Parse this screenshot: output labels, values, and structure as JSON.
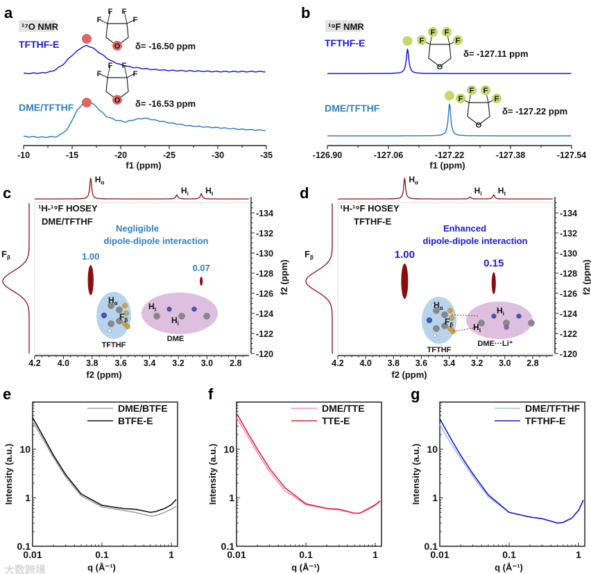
{
  "colors": {
    "blue_dark": "#1a1ad6",
    "blue_light": "#2f7fc1",
    "maroon": "#8b0d12",
    "red_dot": "#e06666",
    "green_dot": "#c5d86d",
    "grey": "#a0a0a0",
    "black": "#111111",
    "pink": "#f08fc8",
    "red": "#e5202a",
    "lightblue": "#9cc3ea",
    "navy": "#1515c8"
  },
  "watermark": "大数跨境",
  "chart_data": [
    {
      "id": "a",
      "panel_label": "a",
      "type": "line",
      "title": "¹⁷O NMR",
      "xlabel": "f1 (ppm)",
      "xlim": [
        -10,
        -35
      ],
      "xticks": [
        "-10",
        "-15",
        "-20",
        "-25",
        "-30",
        "-35"
      ],
      "series": [
        {
          "name": "TFTHF-E",
          "shift_label": "δ= -16.50 ppm",
          "points": [
            [
              -10,
              0
            ],
            [
              -12,
              0.015
            ],
            [
              -13,
              0.06
            ],
            [
              -14,
              0.22
            ],
            [
              -15,
              0.48
            ],
            [
              -16,
              0.69
            ],
            [
              -16.5,
              0.73
            ],
            [
              -17,
              0.69
            ],
            [
              -18,
              0.51
            ],
            [
              -19,
              0.33
            ],
            [
              -20,
              0.23
            ],
            [
              -21,
              0.17
            ],
            [
              -23,
              0.11
            ],
            [
              -25,
              0.08
            ],
            [
              -30,
              0.05
            ],
            [
              -35,
              0.05
            ]
          ]
        },
        {
          "name": "DME/TFTHF",
          "shift_label": "δ= -16.53 ppm",
          "points": [
            [
              -10,
              0.02
            ],
            [
              -12,
              0
            ],
            [
              -13.5,
              0.02
            ],
            [
              -14.5,
              0.2
            ],
            [
              -15.5,
              0.7
            ],
            [
              -16.5,
              1.0
            ],
            [
              -17.5,
              0.8
            ],
            [
              -18.5,
              0.55
            ],
            [
              -19.5,
              0.45
            ],
            [
              -20.5,
              0.4
            ],
            [
              -21.5,
              0.47
            ],
            [
              -22.5,
              0.5
            ],
            [
              -23.5,
              0.45
            ],
            [
              -25,
              0.38
            ],
            [
              -27,
              0.3
            ],
            [
              -30,
              0.25
            ],
            [
              -33,
              0.2
            ],
            [
              -35,
              0.18
            ]
          ]
        }
      ],
      "molecule_atoms": [
        "F",
        "F",
        "F",
        "F",
        "O"
      ]
    },
    {
      "id": "b",
      "panel_label": "b",
      "type": "line",
      "title": "¹⁹F NMR",
      "xlabel": "f1 (ppm)",
      "xlim": [
        -126.9,
        -127.54
      ],
      "xticks": [
        "-126.90",
        "-127.06",
        "-127.22",
        "-127.38",
        "-127.54"
      ],
      "series": [
        {
          "name": "TFTHF-E",
          "shift_label": "δ= -127.11 ppm",
          "center": -127.11,
          "height": 0.76,
          "hwhm": 0.004
        },
        {
          "name": "DME/TFTHF",
          "shift_label": "δ= -127.22 ppm",
          "center": -127.22,
          "height": 1.0,
          "hwhm": 0.004
        }
      ],
      "molecule_atoms": [
        "F",
        "F",
        "F",
        "F",
        "O"
      ]
    },
    {
      "id": "c",
      "panel_label": "c",
      "type": "heatmap",
      "title": "¹H-¹⁹F HOSEY",
      "sample": "DME/TFTHF",
      "annotation": [
        "Negligible",
        "dipole-dipole interaction"
      ],
      "xlabel": "f2 (ppm)",
      "ylabel": "f2 (ppm)",
      "xlim": [
        4.2,
        2.7
      ],
      "ylim": [
        -120,
        -135
      ],
      "xticks": [
        "4.2",
        "4.0",
        "3.8",
        "3.6",
        "3.4",
        "3.2",
        "3.0",
        "2.8"
      ],
      "yticks": [
        "-134",
        "-132",
        "-130",
        "-128",
        "-126",
        "-124",
        "-122",
        "-120"
      ],
      "h_projection": [
        {
          "label": {
            "main": "H",
            "sub": "α"
          },
          "ppm": 3.81,
          "height": 1.0
        },
        {
          "label": {
            "main": "H",
            "sub": "i"
          },
          "ppm": 3.21,
          "height": 0.2
        },
        {
          "label": {
            "main": "H",
            "sub": "t"
          },
          "ppm": 3.04,
          "height": 0.25
        }
      ],
      "f_projection": {
        "label": {
          "main": "F",
          "sub": "β"
        },
        "ppm": -127.2,
        "width": 1.4
      },
      "cross_peaks": [
        {
          "value": "1.00",
          "x": 3.81,
          "y": -127.3,
          "yspan": 3.0,
          "xspan": 0.02
        },
        {
          "value": "0.07",
          "x": 3.04,
          "y": -127.2,
          "yspan": 0.9,
          "xspan": 0.01
        }
      ],
      "inset_labels": [
        "TFTHF",
        "DME"
      ]
    },
    {
      "id": "d",
      "panel_label": "d",
      "type": "heatmap",
      "title": "¹H-¹⁹F HOSEY",
      "sample": "TFTHF-E",
      "annotation": [
        "Enhanced",
        "dipole-dipole interaction"
      ],
      "xlabel": "f2 (ppm)",
      "ylabel": "f2 (ppm)",
      "xlim": [
        4.2,
        2.65
      ],
      "ylim": [
        -120,
        -135
      ],
      "xticks": [
        "4.2",
        "4.0",
        "3.8",
        "3.6",
        "3.4",
        "3.2",
        "3.0",
        "2.8"
      ],
      "yticks": [
        "-134",
        "-132",
        "-130",
        "-128",
        "-126",
        "-124",
        "-122",
        "-120"
      ],
      "h_projection": [
        {
          "label": {
            "main": "H",
            "sub": "α"
          },
          "ppm": 3.72,
          "height": 1.0
        },
        {
          "label": {
            "main": "H",
            "sub": "i"
          },
          "ppm": 3.25,
          "height": 0.1
        },
        {
          "label": {
            "main": "H",
            "sub": "t"
          },
          "ppm": 3.08,
          "height": 0.2
        }
      ],
      "f_projection": {
        "label": {
          "main": "F",
          "sub": "β"
        },
        "ppm": -127.2,
        "width": 1.4
      },
      "cross_peaks": [
        {
          "value": "1.00",
          "x": 3.72,
          "y": -127.2,
          "yspan": 3.5,
          "xspan": 0.025
        },
        {
          "value": "0.15",
          "x": 3.08,
          "y": -127.0,
          "yspan": 2.2,
          "xspan": 0.015
        }
      ],
      "inset_labels": [
        "TFTHF",
        "DME···Li⁺"
      ]
    },
    {
      "id": "e",
      "panel_label": "e",
      "type": "line",
      "xscale": "log",
      "yscale": "log",
      "xlabel": "q (Å⁻¹)",
      "ylabel": "Intensity (a.u.)",
      "xlim": [
        0.01,
        1.2
      ],
      "ylim": [
        0.1,
        100
      ],
      "xticks": [
        "0.01",
        "0.1",
        "1"
      ],
      "yticks": [
        "0.1",
        "1",
        "10"
      ],
      "legend": "top-right",
      "series": [
        {
          "name": "DME/BTFE",
          "color": "#a0a0a0",
          "points": [
            [
              0.01,
              38
            ],
            [
              0.015,
              14
            ],
            [
              0.02,
              6.8
            ],
            [
              0.03,
              2.7
            ],
            [
              0.05,
              1.1
            ],
            [
              0.1,
              0.65
            ],
            [
              0.2,
              0.55
            ],
            [
              0.3,
              0.5
            ],
            [
              0.5,
              0.42
            ],
            [
              0.6,
              0.43
            ],
            [
              0.8,
              0.5
            ],
            [
              1.0,
              0.58
            ],
            [
              1.2,
              0.68
            ]
          ]
        },
        {
          "name": "BTFE-E",
          "color": "#111111",
          "points": [
            [
              0.01,
              45
            ],
            [
              0.015,
              16
            ],
            [
              0.02,
              7.5
            ],
            [
              0.03,
              3
            ],
            [
              0.05,
              1.2
            ],
            [
              0.1,
              0.7
            ],
            [
              0.2,
              0.6
            ],
            [
              0.3,
              0.58
            ],
            [
              0.5,
              0.5
            ],
            [
              0.6,
              0.52
            ],
            [
              0.8,
              0.6
            ],
            [
              1.0,
              0.72
            ],
            [
              1.2,
              0.95
            ]
          ]
        }
      ]
    },
    {
      "id": "f",
      "panel_label": "f",
      "type": "line",
      "xscale": "log",
      "yscale": "log",
      "xlabel": "q (Å⁻¹)",
      "ylabel": "Intensity (a.u.)",
      "xlim": [
        0.01,
        1.2
      ],
      "ylim": [
        0.1,
        100
      ],
      "xticks": [
        "0.01",
        "0.1",
        "1"
      ],
      "yticks": [
        "0.1",
        "1",
        "10"
      ],
      "legend": "top-right",
      "series": [
        {
          "name": "DME/TTE",
          "color": "#f08fc8",
          "points": [
            [
              0.01,
              45
            ],
            [
              0.015,
              17
            ],
            [
              0.02,
              8.5
            ],
            [
              0.03,
              3.4
            ],
            [
              0.05,
              1.4
            ],
            [
              0.1,
              0.72
            ],
            [
              0.2,
              0.6
            ],
            [
              0.3,
              0.56
            ],
            [
              0.5,
              0.48
            ],
            [
              0.6,
              0.48
            ],
            [
              0.8,
              0.58
            ],
            [
              1.0,
              0.7
            ],
            [
              1.2,
              0.86
            ]
          ]
        },
        {
          "name": "TTE-E",
          "color": "#e5202a",
          "points": [
            [
              0.01,
              55
            ],
            [
              0.015,
              20
            ],
            [
              0.02,
              10
            ],
            [
              0.03,
              4
            ],
            [
              0.05,
              1.6
            ],
            [
              0.1,
              0.75
            ],
            [
              0.2,
              0.6
            ],
            [
              0.3,
              0.58
            ],
            [
              0.5,
              0.48
            ],
            [
              0.6,
              0.48
            ],
            [
              0.8,
              0.6
            ],
            [
              1.0,
              0.72
            ],
            [
              1.2,
              0.88
            ]
          ]
        }
      ]
    },
    {
      "id": "g",
      "panel_label": "g",
      "type": "line",
      "xscale": "log",
      "yscale": "log",
      "xlabel": "q (Å⁻¹)",
      "ylabel": "Intensity (a.u.)",
      "xlim": [
        0.01,
        1.2
      ],
      "ylim": [
        0.1,
        100
      ],
      "xticks": [
        "0.01",
        "0.1",
        "1"
      ],
      "yticks": [
        "0.1",
        "1",
        "10"
      ],
      "legend": "top-right",
      "series": [
        {
          "name": "DME/TFTHF",
          "color": "#9cc3ea",
          "points": [
            [
              0.01,
              32
            ],
            [
              0.015,
              12
            ],
            [
              0.02,
              6.5
            ],
            [
              0.03,
              2.7
            ],
            [
              0.05,
              1.05
            ],
            [
              0.1,
              0.5
            ],
            [
              0.2,
              0.4
            ],
            [
              0.3,
              0.37
            ],
            [
              0.5,
              0.3
            ],
            [
              0.6,
              0.31
            ],
            [
              0.8,
              0.38
            ],
            [
              1.0,
              0.55
            ],
            [
              1.2,
              0.95
            ]
          ]
        },
        {
          "name": "TFTHF-E",
          "color": "#1515c8",
          "points": [
            [
              0.01,
              42
            ],
            [
              0.015,
              15
            ],
            [
              0.02,
              7.5
            ],
            [
              0.03,
              3.1
            ],
            [
              0.05,
              1.15
            ],
            [
              0.1,
              0.5
            ],
            [
              0.2,
              0.4
            ],
            [
              0.3,
              0.37
            ],
            [
              0.5,
              0.3
            ],
            [
              0.6,
              0.31
            ],
            [
              0.8,
              0.38
            ],
            [
              1.0,
              0.55
            ],
            [
              1.2,
              0.95
            ]
          ]
        }
      ]
    }
  ]
}
